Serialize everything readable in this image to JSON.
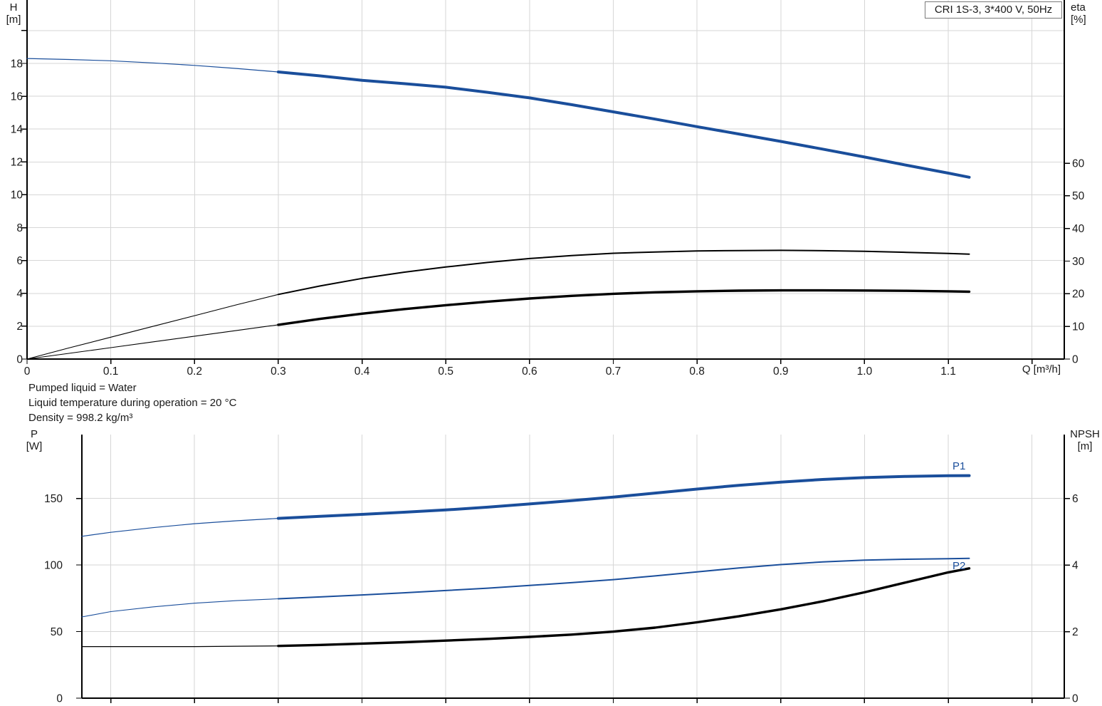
{
  "colors": {
    "curve_blue": "#1a4e9b",
    "curve_black": "#000000",
    "grid": "#d6d6d6",
    "axis": "#000000",
    "text": "#1a1a1a",
    "title_border": "#7a7a7a"
  },
  "info_block": {
    "lines": [
      "Pumped liquid = Water",
      "Liquid temperature during operation = 20 °C",
      "Density = 998.2 kg/m³"
    ]
  },
  "chart_data": [
    {
      "type": "line",
      "title": "CRI 1S-3, 3*400 V, 50Hz",
      "x_axis": {
        "label": "Q [m³/h]",
        "min": 0,
        "max": 1.2385,
        "ticks": [
          0,
          0.1,
          0.2,
          0.3,
          0.4,
          0.5,
          0.6,
          0.7,
          0.8,
          0.9,
          1.0,
          1.1,
          1.2
        ],
        "tick_labels": [
          "0",
          "0.1",
          "0.2",
          "0.3",
          "0.4",
          "0.5",
          "0.6",
          "0.7",
          "0.8",
          "0.9",
          "1.0",
          "1.1",
          ""
        ]
      },
      "y_left": {
        "name": "H",
        "unit": "[m]",
        "min": 0,
        "max": 21.86,
        "ticks": [
          0,
          2,
          4,
          6,
          8,
          10,
          12,
          14,
          16,
          18,
          20
        ],
        "tick_labels": [
          "0",
          "2",
          "4",
          "6",
          "8",
          "10",
          "12",
          "14",
          "16",
          "18",
          ""
        ]
      },
      "y_right": {
        "name": "eta",
        "unit": "[%]",
        "min": 0,
        "max": 110,
        "ticks": [
          0,
          10,
          20,
          30,
          40,
          50,
          60
        ],
        "tick_labels": [
          "0",
          "10",
          "20",
          "30",
          "40",
          "50",
          "60"
        ]
      },
      "grid": true,
      "series": [
        {
          "name": "head-curve",
          "label": "",
          "color": "blue",
          "axis": "left",
          "unit": "m",
          "bold_from": 0.3,
          "width": 4,
          "thin_width": 1.2,
          "points": [
            [
              0,
              18.3
            ],
            [
              0.05,
              18.24
            ],
            [
              0.1,
              18.16
            ],
            [
              0.15,
              18.03
            ],
            [
              0.2,
              17.88
            ],
            [
              0.25,
              17.69
            ],
            [
              0.3,
              17.48
            ],
            [
              0.35,
              17.24
            ],
            [
              0.4,
              16.97
            ],
            [
              0.45,
              16.77
            ],
            [
              0.5,
              16.55
            ],
            [
              0.55,
              16.24
            ],
            [
              0.6,
              15.9
            ],
            [
              0.65,
              15.49
            ],
            [
              0.7,
              15.05
            ],
            [
              0.75,
              14.61
            ],
            [
              0.8,
              14.15
            ],
            [
              0.85,
              13.7
            ],
            [
              0.9,
              13.25
            ],
            [
              0.95,
              12.78
            ],
            [
              1,
              12.3
            ],
            [
              1.05,
              11.8
            ],
            [
              1.1,
              11.32
            ],
            [
              1.125,
              11.07
            ]
          ]
        },
        {
          "name": "efficiency-pump-curve",
          "label": "",
          "color": "black",
          "axis": "right",
          "unit": "%",
          "bold_from": 0.3,
          "width": 2,
          "thin_width": 1.1,
          "points": [
            [
              0,
              0
            ],
            [
              0.05,
              3.4
            ],
            [
              0.1,
              6.7
            ],
            [
              0.15,
              10
            ],
            [
              0.2,
              13.3
            ],
            [
              0.25,
              16.6
            ],
            [
              0.3,
              19.8
            ],
            [
              0.35,
              22.4
            ],
            [
              0.4,
              24.7
            ],
            [
              0.45,
              26.6
            ],
            [
              0.5,
              28.2
            ],
            [
              0.55,
              29.6
            ],
            [
              0.6,
              30.8
            ],
            [
              0.65,
              31.7
            ],
            [
              0.7,
              32.4
            ],
            [
              0.75,
              32.8
            ],
            [
              0.8,
              33.1
            ],
            [
              0.85,
              33.25
            ],
            [
              0.9,
              33.3
            ],
            [
              0.95,
              33.2
            ],
            [
              1,
              33
            ],
            [
              1.05,
              32.7
            ],
            [
              1.1,
              32.35
            ],
            [
              1.125,
              32.15
            ]
          ]
        },
        {
          "name": "efficiency-pump-motor-curve",
          "label": "",
          "color": "black",
          "axis": "right",
          "unit": "%",
          "bold_from": 0.3,
          "width": 3.4,
          "thin_width": 1.1,
          "points": [
            [
              0,
              0
            ],
            [
              0.05,
              1.75
            ],
            [
              0.1,
              3.5
            ],
            [
              0.15,
              5.25
            ],
            [
              0.2,
              7
            ],
            [
              0.25,
              8.75
            ],
            [
              0.3,
              10.5
            ],
            [
              0.35,
              12.3
            ],
            [
              0.4,
              13.9
            ],
            [
              0.45,
              15.3
            ],
            [
              0.5,
              16.5
            ],
            [
              0.55,
              17.6
            ],
            [
              0.6,
              18.55
            ],
            [
              0.65,
              19.35
            ],
            [
              0.7,
              20
            ],
            [
              0.75,
              20.45
            ],
            [
              0.8,
              20.75
            ],
            [
              0.85,
              20.95
            ],
            [
              0.9,
              21.05
            ],
            [
              0.95,
              21.05
            ],
            [
              1,
              21
            ],
            [
              1.05,
              20.9
            ],
            [
              1.1,
              20.75
            ],
            [
              1.125,
              20.65
            ]
          ]
        }
      ]
    },
    {
      "type": "line",
      "title": "",
      "x_axis": {
        "label": "",
        "min": 0.0655,
        "max": 1.2385,
        "ticks": [
          0.1,
          0.2,
          0.3,
          0.4,
          0.5,
          0.6,
          0.7,
          0.8,
          0.9,
          1.0,
          1.1,
          1.2
        ],
        "tick_labels": [
          "",
          "",
          "",
          "",
          "",
          "",
          "",
          "",
          "",
          "",
          "",
          ""
        ]
      },
      "y_left": {
        "name": "P",
        "unit": "[W]",
        "min": 0,
        "max": 197.9,
        "ticks": [
          0,
          50,
          100,
          150
        ],
        "tick_labels": [
          "0",
          "50",
          "100",
          "150"
        ]
      },
      "y_right": {
        "name": "NPSH",
        "unit": "[m]",
        "min": 0,
        "max": 7.92,
        "ticks": [
          0,
          2,
          4,
          6
        ],
        "tick_labels": [
          "0",
          "2",
          "4",
          "6"
        ]
      },
      "grid": true,
      "series": [
        {
          "name": "p1-power-curve",
          "label": "P1",
          "color": "blue",
          "axis": "left",
          "unit": "W",
          "bold_from": 0.3,
          "width": 4,
          "thin_width": 1.2,
          "points": [
            [
              0.065,
              121.5
            ],
            [
              0.1,
              124.5
            ],
            [
              0.15,
              128
            ],
            [
              0.2,
              131
            ],
            [
              0.25,
              133.2
            ],
            [
              0.3,
              135
            ],
            [
              0.35,
              136.5
            ],
            [
              0.4,
              138
            ],
            [
              0.45,
              139.6
            ],
            [
              0.5,
              141.3
            ],
            [
              0.55,
              143.4
            ],
            [
              0.6,
              145.8
            ],
            [
              0.65,
              148.3
            ],
            [
              0.7,
              151
            ],
            [
              0.75,
              154
            ],
            [
              0.8,
              157
            ],
            [
              0.85,
              159.8
            ],
            [
              0.9,
              162.2
            ],
            [
              0.95,
              164.2
            ],
            [
              1,
              165.6
            ],
            [
              1.05,
              166.5
            ],
            [
              1.1,
              167
            ],
            [
              1.125,
              167.1
            ]
          ]
        },
        {
          "name": "p2-power-curve",
          "label": "P2",
          "color": "blue",
          "axis": "left",
          "unit": "W",
          "bold_from": 0.3,
          "width": 2,
          "thin_width": 1.1,
          "points": [
            [
              0.065,
              61
            ],
            [
              0.1,
              65
            ],
            [
              0.15,
              68.5
            ],
            [
              0.2,
              71.3
            ],
            [
              0.25,
              73.2
            ],
            [
              0.3,
              74.6
            ],
            [
              0.35,
              76
            ],
            [
              0.4,
              77.5
            ],
            [
              0.45,
              79.1
            ],
            [
              0.5,
              80.8
            ],
            [
              0.55,
              82.6
            ],
            [
              0.6,
              84.6
            ],
            [
              0.65,
              86.7
            ],
            [
              0.7,
              89
            ],
            [
              0.75,
              91.8
            ],
            [
              0.8,
              94.8
            ],
            [
              0.85,
              97.8
            ],
            [
              0.9,
              100.3
            ],
            [
              0.95,
              102.3
            ],
            [
              1,
              103.6
            ],
            [
              1.05,
              104.3
            ],
            [
              1.1,
              104.7
            ],
            [
              1.125,
              105
            ]
          ]
        },
        {
          "name": "npsh-curve",
          "label": "",
          "color": "black",
          "axis": "right",
          "unit": "m",
          "bold_from": 0.3,
          "width": 3.4,
          "thin_width": 1.2,
          "points": [
            [
              0.065,
              1.55
            ],
            [
              0.1,
              1.55
            ],
            [
              0.15,
              1.55
            ],
            [
              0.2,
              1.55
            ],
            [
              0.25,
              1.56
            ],
            [
              0.3,
              1.57
            ],
            [
              0.35,
              1.6
            ],
            [
              0.4,
              1.64
            ],
            [
              0.45,
              1.68
            ],
            [
              0.5,
              1.73
            ],
            [
              0.55,
              1.78
            ],
            [
              0.6,
              1.84
            ],
            [
              0.65,
              1.91
            ],
            [
              0.7,
              2
            ],
            [
              0.75,
              2.12
            ],
            [
              0.8,
              2.28
            ],
            [
              0.85,
              2.46
            ],
            [
              0.9,
              2.67
            ],
            [
              0.95,
              2.91
            ],
            [
              1,
              3.18
            ],
            [
              1.05,
              3.48
            ],
            [
              1.1,
              3.78
            ],
            [
              1.125,
              3.9
            ]
          ]
        }
      ]
    }
  ]
}
